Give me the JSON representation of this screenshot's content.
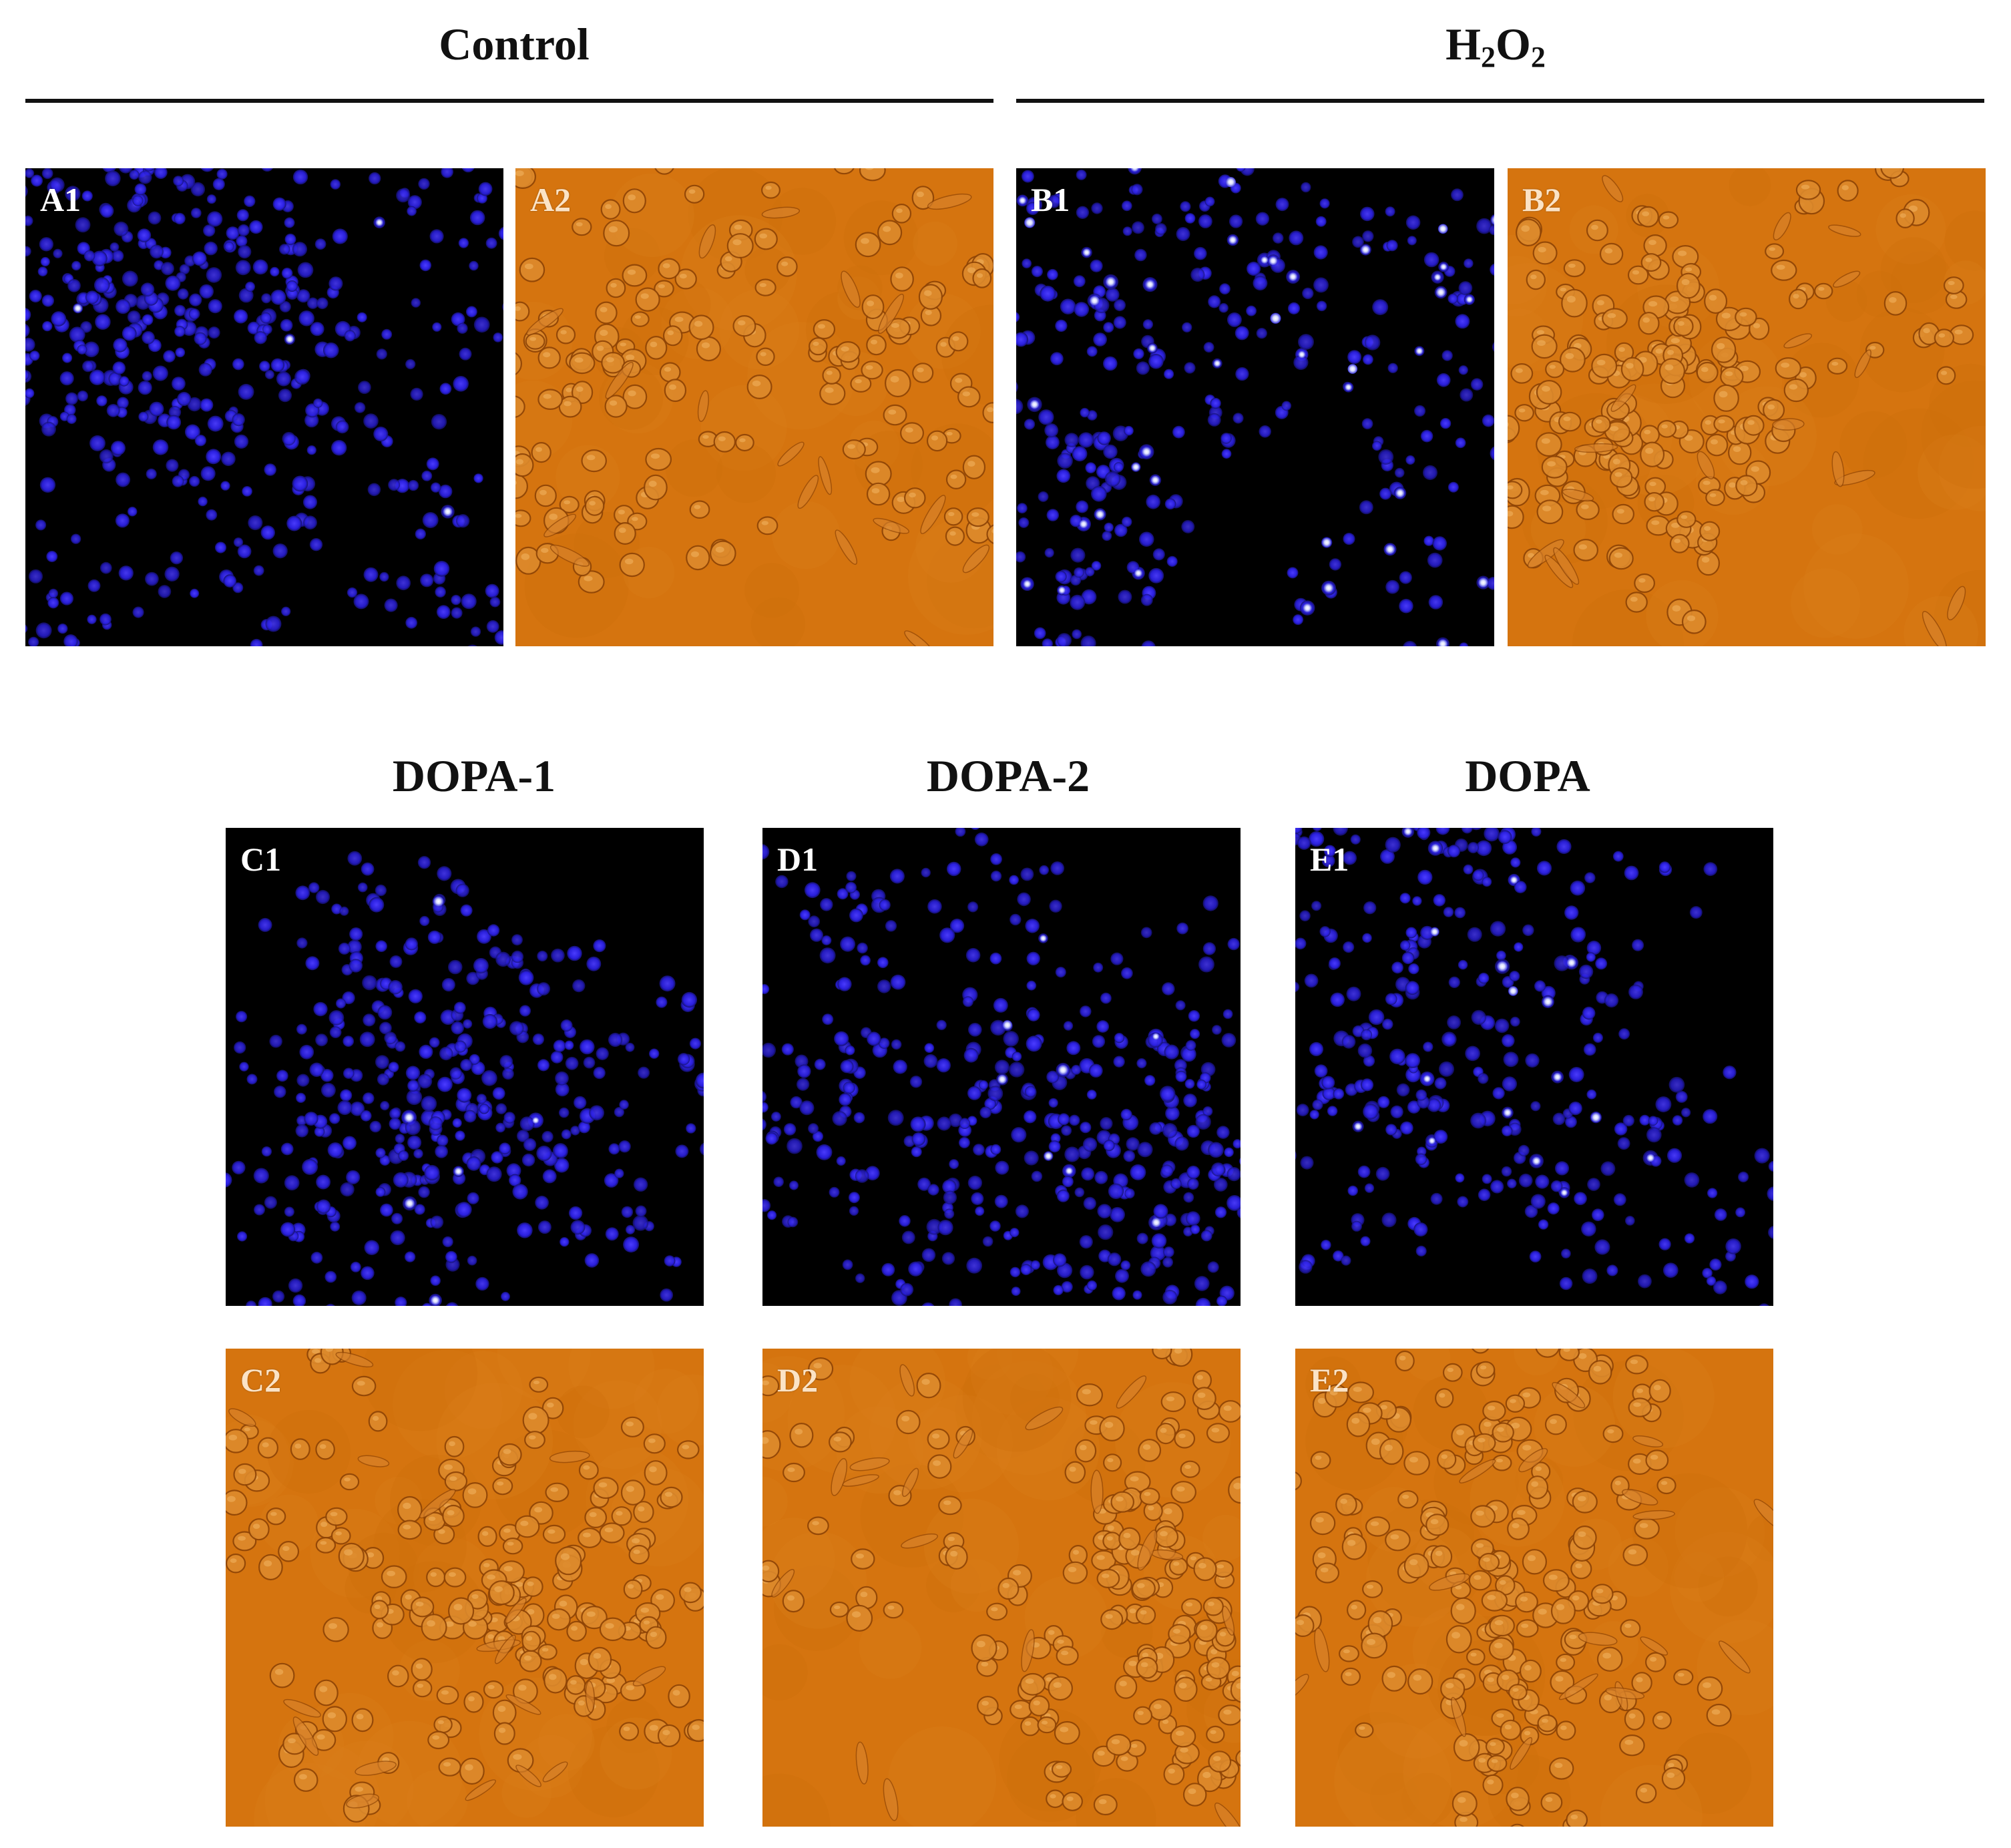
{
  "groups": {
    "control": {
      "title": "Control"
    },
    "h2o2": {
      "title_main_1": "H",
      "title_sub_1": "2",
      "title_main_2": "O",
      "title_sub_2": "2"
    },
    "dopa1": {
      "title": "DOPA-1"
    },
    "dopa2": {
      "title": "DOPA-2"
    },
    "dopa": {
      "title": "DOPA"
    }
  },
  "panels": {
    "a1": {
      "label": "A1",
      "kind": "fluorescence",
      "seed": 11,
      "density": 520,
      "bright_spots": 4
    },
    "a2": {
      "label": "A2",
      "kind": "brightfield",
      "seed": 21,
      "density": 190
    },
    "b1": {
      "label": "B1",
      "kind": "fluorescence",
      "seed": 31,
      "density": 430,
      "bright_spots": 45
    },
    "b2": {
      "label": "B2",
      "kind": "brightfield",
      "seed": 41,
      "density": 200
    },
    "c1": {
      "label": "C1",
      "kind": "fluorescence",
      "seed": 51,
      "density": 400,
      "bright_spots": 6
    },
    "c2": {
      "label": "C2",
      "kind": "brightfield",
      "seed": 61,
      "density": 210
    },
    "d1": {
      "label": "D1",
      "kind": "fluorescence",
      "seed": 71,
      "density": 460,
      "bright_spots": 8
    },
    "d2": {
      "label": "D2",
      "kind": "brightfield",
      "seed": 81,
      "density": 215
    },
    "e1": {
      "label": "E1",
      "kind": "fluorescence",
      "seed": 91,
      "density": 430,
      "bright_spots": 18
    },
    "e2": {
      "label": "E2",
      "kind": "brightfield",
      "seed": 101,
      "density": 205
    }
  },
  "colors": {
    "fluor_background": "#000000",
    "nucleus": "#2a1fe0",
    "nucleus_bright": "#d8ddff",
    "bright_background": "#d5740f",
    "cell_fill": "#dd8a2c",
    "cell_edge": "#8e4406"
  }
}
